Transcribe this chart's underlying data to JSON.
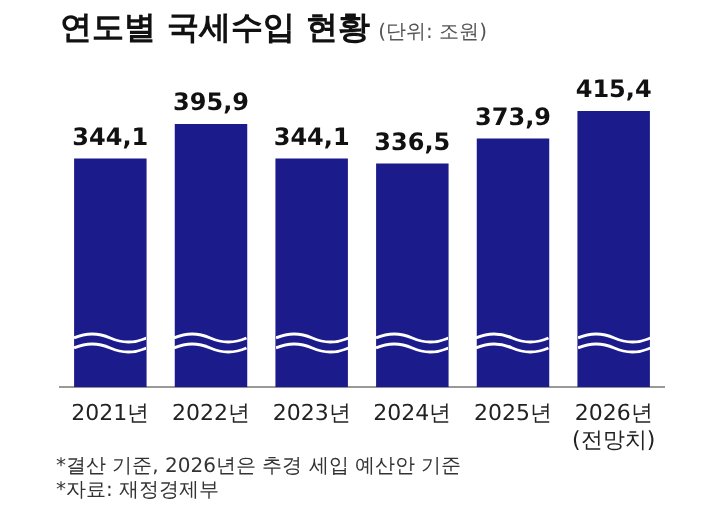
{
  "chart_data": {
    "type": "bar",
    "title": "연도별 국세수입 현황",
    "subtitle": "(단위: 조원)",
    "categories": [
      "2021년",
      "2022년",
      "2023년",
      "2024년",
      "2025년",
      "2026년\n(전망치)"
    ],
    "values": [
      344.1,
      395.9,
      344.1,
      336.5,
      373.9,
      415.4
    ],
    "value_labels": [
      "344,1",
      "395,9",
      "344,1",
      "336,5",
      "373,9",
      "415,4"
    ],
    "color": "#1b1b8c",
    "tick_labels": "x",
    "grid": false,
    "legend": false,
    "annotations": [
      "*결산 기준, 2026년은 추경 세입 예산안 기준",
      "*자료: 재정경제부"
    ]
  }
}
